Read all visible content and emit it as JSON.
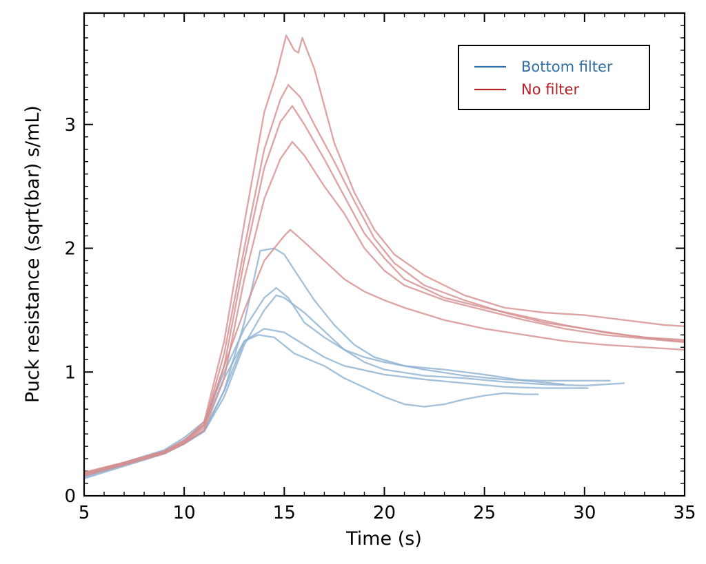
{
  "chart_data": {
    "type": "line",
    "title": "",
    "xlabel": "Time (s)",
    "ylabel": "Puck resistance (sqrt(bar) s/mL)",
    "xlim": [
      5,
      35
    ],
    "ylim": [
      0,
      3.9
    ],
    "xticks": [
      5,
      10,
      15,
      20,
      25,
      30,
      35
    ],
    "yticks": [
      0,
      1,
      2,
      3
    ],
    "legend": {
      "position": "top-right",
      "entries": [
        {
          "label": "Bottom filter",
          "color": "#2f6fa7"
        },
        {
          "label": "No filter",
          "color": "#b52025"
        }
      ]
    },
    "series": [
      {
        "name": "Bottom filter",
        "group": "bottom",
        "color": "#8eb1d1",
        "points": [
          [
            5,
            0.15
          ],
          [
            7,
            0.25
          ],
          [
            9,
            0.35
          ],
          [
            10,
            0.42
          ],
          [
            11,
            0.52
          ],
          [
            12,
            0.85
          ],
          [
            13,
            1.25
          ],
          [
            13.7,
            1.3
          ],
          [
            14.5,
            1.28
          ],
          [
            15.5,
            1.15
          ],
          [
            17,
            1.05
          ],
          [
            18,
            0.95
          ],
          [
            20,
            0.8
          ],
          [
            21,
            0.74
          ],
          [
            22,
            0.72
          ],
          [
            23,
            0.74
          ],
          [
            24,
            0.78
          ],
          [
            25,
            0.81
          ],
          [
            26,
            0.83
          ],
          [
            27,
            0.82
          ],
          [
            27.7,
            0.82
          ]
        ]
      },
      {
        "name": "Bottom filter",
        "group": "bottom",
        "color": "#8eb1d1",
        "points": [
          [
            5,
            0.17
          ],
          [
            7,
            0.26
          ],
          [
            9,
            0.36
          ],
          [
            10,
            0.45
          ],
          [
            11,
            0.57
          ],
          [
            12,
            0.95
          ],
          [
            13,
            1.25
          ],
          [
            14,
            1.35
          ],
          [
            15,
            1.32
          ],
          [
            16,
            1.22
          ],
          [
            17,
            1.12
          ],
          [
            18,
            1.05
          ],
          [
            20,
            0.98
          ],
          [
            22,
            0.94
          ],
          [
            24,
            0.91
          ],
          [
            26,
            0.88
          ],
          [
            28,
            0.87
          ],
          [
            30.2,
            0.87
          ]
        ]
      },
      {
        "name": "Bottom filter",
        "group": "bottom",
        "color": "#8eb1d1",
        "points": [
          [
            5,
            0.16
          ],
          [
            7,
            0.25
          ],
          [
            9,
            0.35
          ],
          [
            10,
            0.43
          ],
          [
            11,
            0.52
          ],
          [
            12,
            0.8
          ],
          [
            13,
            1.22
          ],
          [
            14,
            1.5
          ],
          [
            14.6,
            1.62
          ],
          [
            15,
            1.6
          ],
          [
            16,
            1.48
          ],
          [
            17,
            1.33
          ],
          [
            18,
            1.18
          ],
          [
            19,
            1.08
          ],
          [
            20,
            1.02
          ],
          [
            22,
            0.97
          ],
          [
            24,
            0.95
          ],
          [
            26,
            0.92
          ],
          [
            28,
            0.9
          ],
          [
            30,
            0.89
          ],
          [
            32,
            0.91
          ]
        ]
      },
      {
        "name": "Bottom filter",
        "group": "bottom",
        "color": "#8eb1d1",
        "points": [
          [
            5,
            0.18
          ],
          [
            7,
            0.27
          ],
          [
            9,
            0.37
          ],
          [
            10,
            0.47
          ],
          [
            11,
            0.6
          ],
          [
            12,
            1.0
          ],
          [
            13,
            1.35
          ],
          [
            14,
            1.6
          ],
          [
            14.6,
            1.68
          ],
          [
            15.2,
            1.6
          ],
          [
            16,
            1.4
          ],
          [
            17,
            1.28
          ],
          [
            18,
            1.18
          ],
          [
            19,
            1.12
          ],
          [
            20,
            1.08
          ],
          [
            22,
            1.02
          ],
          [
            24,
            0.97
          ],
          [
            26,
            0.94
          ],
          [
            28,
            0.93
          ],
          [
            30,
            0.93
          ],
          [
            31.3,
            0.93
          ]
        ]
      },
      {
        "name": "Bottom filter",
        "group": "bottom",
        "color": "#8eb1d1",
        "points": [
          [
            5,
            0.14
          ],
          [
            7,
            0.24
          ],
          [
            9,
            0.34
          ],
          [
            10,
            0.42
          ],
          [
            11,
            0.53
          ],
          [
            12,
            0.85
          ],
          [
            13,
            1.4
          ],
          [
            13.8,
            1.98
          ],
          [
            14.5,
            2.0
          ],
          [
            15,
            1.95
          ],
          [
            15.6,
            1.8
          ],
          [
            16.5,
            1.58
          ],
          [
            17.5,
            1.38
          ],
          [
            18.5,
            1.22
          ],
          [
            19.5,
            1.12
          ],
          [
            21,
            1.05
          ],
          [
            23,
            1.02
          ],
          [
            25,
            0.98
          ],
          [
            27,
            0.93
          ],
          [
            29,
            0.9
          ]
        ]
      },
      {
        "name": "No filter",
        "group": "none",
        "color": "#d58e90",
        "points": [
          [
            5,
            0.19
          ],
          [
            7,
            0.27
          ],
          [
            9,
            0.36
          ],
          [
            10,
            0.44
          ],
          [
            11,
            0.6
          ],
          [
            12,
            1.25
          ],
          [
            13,
            2.2
          ],
          [
            14,
            3.1
          ],
          [
            14.6,
            3.4
          ],
          [
            15.1,
            3.72
          ],
          [
            15.5,
            3.6
          ],
          [
            15.7,
            3.58
          ],
          [
            15.9,
            3.7
          ],
          [
            16.5,
            3.45
          ],
          [
            17.5,
            2.85
          ],
          [
            18.5,
            2.45
          ],
          [
            19.5,
            2.15
          ],
          [
            20.5,
            1.95
          ],
          [
            22,
            1.78
          ],
          [
            24,
            1.62
          ],
          [
            26,
            1.52
          ],
          [
            28,
            1.48
          ],
          [
            30,
            1.46
          ],
          [
            32,
            1.42
          ],
          [
            34,
            1.38
          ],
          [
            35,
            1.37
          ]
        ]
      },
      {
        "name": "No filter",
        "group": "none",
        "color": "#d58e90",
        "points": [
          [
            5,
            0.18
          ],
          [
            7,
            0.26
          ],
          [
            9,
            0.35
          ],
          [
            10,
            0.43
          ],
          [
            11,
            0.57
          ],
          [
            12,
            1.15
          ],
          [
            13,
            2.0
          ],
          [
            14,
            2.8
          ],
          [
            14.8,
            3.2
          ],
          [
            15.2,
            3.32
          ],
          [
            15.8,
            3.22
          ],
          [
            16.5,
            3.0
          ],
          [
            17.5,
            2.7
          ],
          [
            18.5,
            2.38
          ],
          [
            19.5,
            2.08
          ],
          [
            20.5,
            1.88
          ],
          [
            22,
            1.7
          ],
          [
            24,
            1.58
          ],
          [
            26,
            1.48
          ],
          [
            28,
            1.4
          ],
          [
            30,
            1.35
          ],
          [
            32,
            1.3
          ],
          [
            34,
            1.26
          ],
          [
            35,
            1.25
          ]
        ]
      },
      {
        "name": "No filter",
        "group": "none",
        "color": "#d58e90",
        "points": [
          [
            5,
            0.17
          ],
          [
            7,
            0.26
          ],
          [
            9,
            0.35
          ],
          [
            10,
            0.43
          ],
          [
            11,
            0.55
          ],
          [
            12,
            1.05
          ],
          [
            13,
            1.9
          ],
          [
            14,
            2.65
          ],
          [
            14.8,
            3.02
          ],
          [
            15.4,
            3.15
          ],
          [
            16,
            3.0
          ],
          [
            17,
            2.72
          ],
          [
            18,
            2.42
          ],
          [
            19,
            2.12
          ],
          [
            20,
            1.92
          ],
          [
            21,
            1.75
          ],
          [
            23,
            1.6
          ],
          [
            25,
            1.52
          ],
          [
            27,
            1.45
          ],
          [
            29,
            1.38
          ],
          [
            31,
            1.32
          ],
          [
            33,
            1.28
          ],
          [
            35,
            1.26
          ]
        ]
      },
      {
        "name": "No filter",
        "group": "none",
        "color": "#d58e90",
        "points": [
          [
            5,
            0.16
          ],
          [
            7,
            0.25
          ],
          [
            9,
            0.34
          ],
          [
            10,
            0.42
          ],
          [
            11,
            0.53
          ],
          [
            12,
            0.95
          ],
          [
            13,
            1.75
          ],
          [
            14,
            2.4
          ],
          [
            14.8,
            2.72
          ],
          [
            15.4,
            2.86
          ],
          [
            16,
            2.75
          ],
          [
            17,
            2.5
          ],
          [
            18,
            2.28
          ],
          [
            19,
            2.0
          ],
          [
            20,
            1.82
          ],
          [
            21,
            1.7
          ],
          [
            23,
            1.58
          ],
          [
            25,
            1.5
          ],
          [
            27,
            1.42
          ],
          [
            29,
            1.35
          ],
          [
            31,
            1.3
          ],
          [
            33,
            1.27
          ],
          [
            35,
            1.24
          ]
        ]
      },
      {
        "name": "No filter",
        "group": "none",
        "color": "#d58e90",
        "points": [
          [
            5,
            0.18
          ],
          [
            7,
            0.27
          ],
          [
            9,
            0.36
          ],
          [
            10,
            0.45
          ],
          [
            11,
            0.58
          ],
          [
            12,
            1.05
          ],
          [
            13,
            1.5
          ],
          [
            14,
            1.9
          ],
          [
            15,
            2.1
          ],
          [
            15.3,
            2.15
          ],
          [
            16,
            2.05
          ],
          [
            17,
            1.9
          ],
          [
            18,
            1.75
          ],
          [
            19,
            1.65
          ],
          [
            20,
            1.58
          ],
          [
            21,
            1.52
          ],
          [
            23,
            1.42
          ],
          [
            25,
            1.35
          ],
          [
            27,
            1.3
          ],
          [
            29,
            1.25
          ],
          [
            31,
            1.22
          ],
          [
            33,
            1.2
          ],
          [
            35,
            1.18
          ]
        ]
      }
    ]
  }
}
